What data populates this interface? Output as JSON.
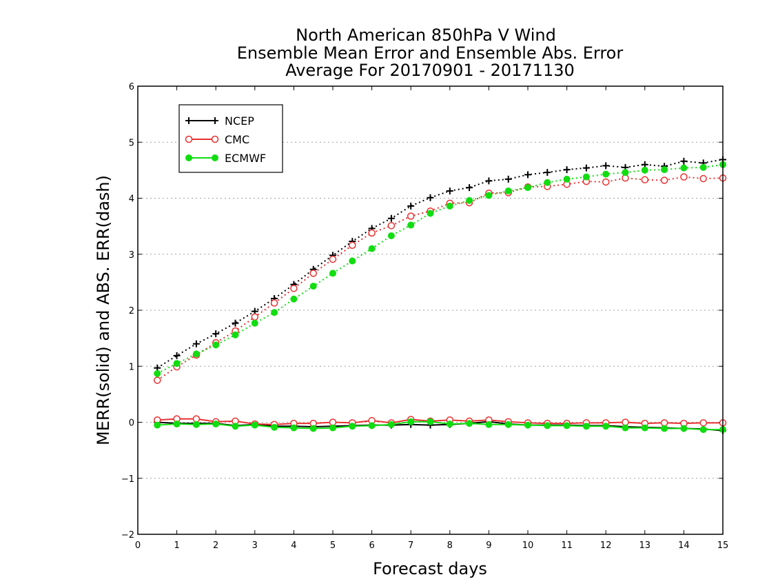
{
  "chart_data": {
    "type": "line",
    "title": [
      "North American 850hPa V Wind",
      "Ensemble Mean Error and Ensemble Abs. Error",
      "Average For 20170901 - 20171130"
    ],
    "xlabel": "Forecast days",
    "ylabel": "MERR(solid) and ABS. ERR(dash)",
    "xlim": [
      0,
      15
    ],
    "ylim": [
      -2,
      6
    ],
    "xticks": [
      0,
      1,
      2,
      3,
      4,
      5,
      6,
      7,
      8,
      9,
      10,
      11,
      12,
      13,
      14,
      15
    ],
    "yticks": [
      -2,
      -1,
      0,
      1,
      2,
      3,
      4,
      5,
      6
    ],
    "ytick_labels": [
      "−2",
      "−1",
      "0",
      "1",
      "2",
      "3",
      "4",
      "5",
      "6"
    ],
    "grid": "horizontal dotted",
    "legend_position": "top-left",
    "x": [
      0.5,
      1,
      1.5,
      2,
      2.5,
      3,
      3.5,
      4,
      4.5,
      5,
      5.5,
      6,
      6.5,
      7,
      7.5,
      8,
      8.5,
      9,
      9.5,
      10,
      10.5,
      11,
      11.5,
      12,
      12.5,
      13,
      13.5,
      14,
      14.5,
      15
    ],
    "series": [
      {
        "name": "NCEP",
        "color": "#000000",
        "marker": "plus",
        "abs_err": [
          0.97,
          1.19,
          1.4,
          1.58,
          1.77,
          1.98,
          2.21,
          2.46,
          2.73,
          2.98,
          3.23,
          3.46,
          3.64,
          3.86,
          4.01,
          4.13,
          4.19,
          4.31,
          4.34,
          4.42,
          4.46,
          4.51,
          4.54,
          4.58,
          4.55,
          4.6,
          4.57,
          4.66,
          4.63,
          4.69
        ],
        "mean_err": [
          0.0,
          -0.02,
          -0.02,
          -0.02,
          -0.06,
          -0.04,
          -0.07,
          -0.07,
          -0.08,
          -0.07,
          -0.06,
          -0.05,
          -0.05,
          -0.04,
          -0.05,
          -0.04,
          -0.02,
          0.01,
          -0.03,
          -0.05,
          -0.05,
          -0.05,
          -0.06,
          -0.06,
          -0.08,
          -0.09,
          -0.1,
          -0.11,
          -0.12,
          -0.15
        ]
      },
      {
        "name": "CMC",
        "color": "#e83030",
        "marker": "open-circle",
        "abs_err": [
          0.75,
          0.99,
          1.2,
          1.42,
          1.63,
          1.88,
          2.13,
          2.39,
          2.66,
          2.91,
          3.16,
          3.38,
          3.51,
          3.68,
          3.77,
          3.91,
          3.92,
          4.09,
          4.1,
          4.2,
          4.21,
          4.25,
          4.3,
          4.29,
          4.36,
          4.33,
          4.32,
          4.38,
          4.35,
          4.36
        ],
        "mean_err": [
          0.04,
          0.06,
          0.06,
          0.01,
          0.02,
          -0.03,
          -0.04,
          -0.02,
          -0.02,
          0.0,
          -0.01,
          0.03,
          -0.01,
          0.05,
          0.02,
          0.04,
          0.02,
          0.04,
          0.01,
          -0.01,
          -0.02,
          -0.02,
          -0.01,
          -0.01,
          0.0,
          -0.02,
          -0.01,
          -0.02,
          -0.01,
          -0.01
        ]
      },
      {
        "name": "ECMWF",
        "color": "#11dd11",
        "marker": "filled-circle",
        "abs_err": [
          0.87,
          1.05,
          1.22,
          1.38,
          1.56,
          1.77,
          1.96,
          2.2,
          2.43,
          2.66,
          2.88,
          3.1,
          3.33,
          3.52,
          3.73,
          3.86,
          3.96,
          4.05,
          4.13,
          4.19,
          4.28,
          4.34,
          4.38,
          4.43,
          4.46,
          4.5,
          4.51,
          4.54,
          4.55,
          4.6
        ],
        "mean_err": [
          -0.05,
          -0.03,
          -0.04,
          -0.03,
          -0.07,
          -0.05,
          -0.09,
          -0.1,
          -0.11,
          -0.1,
          -0.07,
          -0.06,
          -0.04,
          0.01,
          0.01,
          -0.03,
          -0.02,
          -0.04,
          -0.04,
          -0.05,
          -0.06,
          -0.06,
          -0.07,
          -0.07,
          -0.1,
          -0.1,
          -0.11,
          -0.11,
          -0.13,
          -0.13
        ]
      }
    ]
  }
}
